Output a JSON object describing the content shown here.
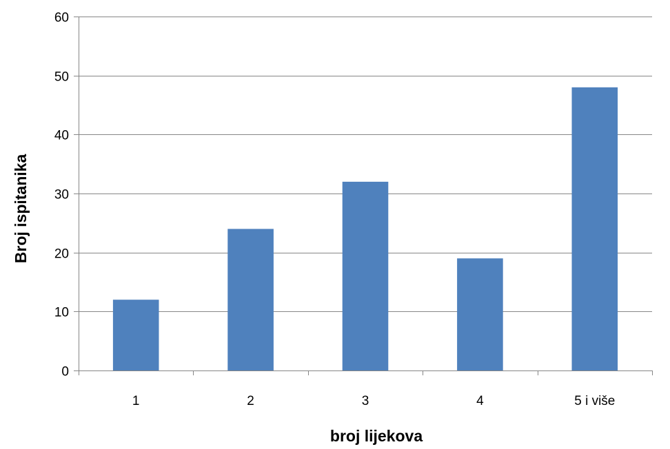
{
  "chart_data": {
    "type": "bar",
    "title": "",
    "xlabel": "broj lijekova",
    "ylabel": "Broj ispitanika",
    "categories": [
      "1",
      "2",
      "3",
      "4",
      "5 i više"
    ],
    "series": [
      {
        "values": [
          12,
          24,
          32,
          19,
          48
        ]
      }
    ],
    "ylim": [
      0,
      60
    ],
    "yticks": [
      0,
      10,
      20,
      30,
      40,
      50,
      60
    ],
    "grid": "horizontal",
    "legend": "none",
    "colors": {
      "bar": "#4F81BD",
      "grid": "#868686",
      "axis": "#868686"
    }
  }
}
